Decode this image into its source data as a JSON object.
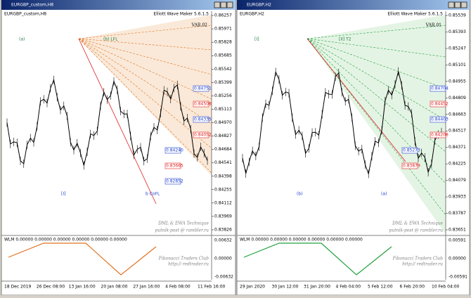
{
  "windows": [
    {
      "title": "EURGBP_custom,H8",
      "tag": "EURGBP_custom,H8",
      "indicator": "Elliott Wave Maker 5.6.1.5",
      "variant": "VAR.02",
      "prices": [
        "0.86257",
        "0.85971",
        "0.85828",
        "0.85685",
        "0.85542",
        "0.85399",
        "0.85256",
        "0.85113",
        "0.84970",
        "0.84827",
        "0.84684",
        "0.84541",
        "0.84398",
        "0.84255",
        "0.84112",
        "0.83969",
        "0.83826"
      ],
      "dates": [
        "18 Dec 2019",
        "26 Dec 08:00",
        "13 Jan 16:00",
        "20 Jan 08:00",
        "27 Jan 16:00",
        "4 Feb 08:00",
        "11 Feb 16:00"
      ],
      "sub_label": "WLM 0.00000 0.00000 0.00000 0.00000 0.00000 0.00000",
      "sub_prices": [
        "0.00632",
        "0.00000",
        "-0.00632"
      ],
      "boxes": [
        "0.84751",
        "0.84508",
        "0.84335",
        "0.84052",
        "0.84240",
        "0.83665",
        "0.82852"
      ],
      "waves": [
        "(a)",
        "[I]",
        "(b) LFL",
        "b CoFL"
      ],
      "credits": [
        "DML & EWA Technique",
        "putnik-post @ rambler.ru",
        "Fibonacci Traders Club",
        "http:// redtrader.ru"
      ]
    },
    {
      "title": "EURGBP,H2",
      "tag": "EURGBP,H2",
      "indicator": "Elliott Wave Maker 5.6.1.5",
      "variant": "VAR.01",
      "prices": [
        "0.85539",
        "0.85393",
        "0.85247",
        "0.85101",
        "0.84955",
        "0.84809",
        "0.84663",
        "0.84517",
        "0.84371",
        "0.84225",
        "0.84079",
        "0.83933",
        "0.83787",
        "0.83651"
      ],
      "dates": [
        "29 Jan 2020",
        "30 Jan 12:00",
        "31 Jan 20:00",
        "4 Feb 04:00",
        "5 Feb 12:00",
        "6 Feb 20:00",
        "10 Feb 04:00"
      ],
      "sub_label": "WLM 0.00000 0.00000 0.00000 0.00000 0.00000 0.00000",
      "sub_prices": [
        "0.00591",
        "0.00000",
        "-0.00591"
      ],
      "boxes": [
        "0.84704",
        "0.84452",
        "0.84403",
        "0.84208",
        "0.85273",
        "0.83879"
      ],
      "waves": [
        "[I]",
        "(b)",
        "[II] T2",
        "(a)"
      ],
      "credits": [
        "DML & EWA Technique",
        "putnik-post @ rambler.ru",
        "Fibonacci Traders Club",
        "http:// redtrader.ru"
      ]
    }
  ]
}
